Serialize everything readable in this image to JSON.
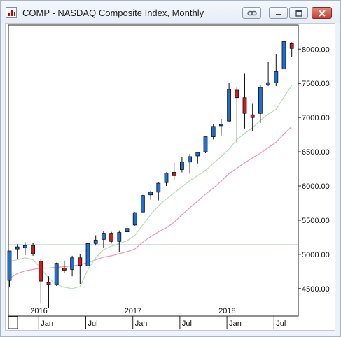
{
  "window": {
    "title": "COMP - NASDAQ Composite Index, Monthly",
    "buttons": {
      "link": "link-icon",
      "minimize": "minimize-icon",
      "maximize": "maximize-icon",
      "close": "close-icon"
    }
  },
  "chart_data": {
    "type": "candlestick",
    "colors": {
      "up": "#1a6fd8",
      "down": "#d11a1a",
      "ma_short": "#b6dcb4",
      "ma_long": "#f291b5",
      "hline": "#4e79c7"
    },
    "ylim": [
      4100,
      8350
    ],
    "yticks": [
      4500,
      5000,
      5500,
      6000,
      6500,
      7000,
      7500,
      8000
    ],
    "ytick_labels": [
      "4500.00",
      "5000.00",
      "5500.00",
      "6000.00",
      "6500.00",
      "7000.00",
      "7500.00",
      "8000.00"
    ],
    "x_year_labels": [
      {
        "label": "2016",
        "index": 4
      },
      {
        "label": "2017",
        "index": 16
      },
      {
        "label": "2018",
        "index": 28
      }
    ],
    "x_month_labels": [
      {
        "label": "Jan",
        "index": 4
      },
      {
        "label": "Jul",
        "index": 10
      },
      {
        "label": "Jan",
        "index": 16
      },
      {
        "label": "Jul",
        "index": 22
      },
      {
        "label": "Jan",
        "index": 28
      },
      {
        "label": "Jul",
        "index": 34
      }
    ],
    "horizontal_line": 5140,
    "candles": [
      {
        "date": "2015-09",
        "o": 4620,
        "h": 5050,
        "l": 4530,
        "c": 5050
      },
      {
        "date": "2015-10",
        "o": 5080,
        "h": 5150,
        "l": 4930,
        "c": 5110
      },
      {
        "date": "2015-11",
        "o": 5100,
        "h": 5180,
        "l": 4990,
        "c": 5130
      },
      {
        "date": "2015-12",
        "o": 5130,
        "h": 5170,
        "l": 4980,
        "c": 5010
      },
      {
        "date": "2016-01",
        "o": 4900,
        "h": 4930,
        "l": 4280,
        "c": 4610
      },
      {
        "date": "2016-02",
        "o": 4590,
        "h": 4680,
        "l": 4220,
        "c": 4560
      },
      {
        "date": "2016-03",
        "o": 4560,
        "h": 4880,
        "l": 4540,
        "c": 4870
      },
      {
        "date": "2016-04",
        "o": 4800,
        "h": 4910,
        "l": 4730,
        "c": 4770
      },
      {
        "date": "2016-05",
        "o": 4780,
        "h": 4980,
        "l": 4680,
        "c": 4950
      },
      {
        "date": "2016-06",
        "o": 4950,
        "h": 5010,
        "l": 4570,
        "c": 4840
      },
      {
        "date": "2016-07",
        "o": 4830,
        "h": 5170,
        "l": 4780,
        "c": 5160
      },
      {
        "date": "2016-08",
        "o": 5160,
        "h": 5280,
        "l": 5130,
        "c": 5210
      },
      {
        "date": "2016-09",
        "o": 5220,
        "h": 5340,
        "l": 5100,
        "c": 5310
      },
      {
        "date": "2016-10",
        "o": 5310,
        "h": 5330,
        "l": 5160,
        "c": 5190
      },
      {
        "date": "2016-11",
        "o": 5190,
        "h": 5350,
        "l": 5030,
        "c": 5320
      },
      {
        "date": "2016-12",
        "o": 5330,
        "h": 5490,
        "l": 5230,
        "c": 5380
      },
      {
        "date": "2017-01",
        "o": 5430,
        "h": 5620,
        "l": 5420,
        "c": 5610
      },
      {
        "date": "2017-02",
        "o": 5620,
        "h": 5870,
        "l": 5620,
        "c": 5860
      },
      {
        "date": "2017-03",
        "o": 5870,
        "h": 5930,
        "l": 5800,
        "c": 5910
      },
      {
        "date": "2017-04",
        "o": 5910,
        "h": 6050,
        "l": 5790,
        "c": 6040
      },
      {
        "date": "2017-05",
        "o": 6050,
        "h": 6200,
        "l": 6000,
        "c": 6190
      },
      {
        "date": "2017-06",
        "o": 6200,
        "h": 6340,
        "l": 6080,
        "c": 6150
      },
      {
        "date": "2017-07",
        "o": 6240,
        "h": 6430,
        "l": 6200,
        "c": 6350
      },
      {
        "date": "2017-08",
        "o": 6350,
        "h": 6470,
        "l": 6180,
        "c": 6430
      },
      {
        "date": "2017-09",
        "o": 6440,
        "h": 6500,
        "l": 6330,
        "c": 6490
      },
      {
        "date": "2017-10",
        "o": 6500,
        "h": 6720,
        "l": 6480,
        "c": 6720
      },
      {
        "date": "2017-11",
        "o": 6720,
        "h": 6900,
        "l": 6680,
        "c": 6870
      },
      {
        "date": "2017-12",
        "o": 6880,
        "h": 6980,
        "l": 6740,
        "c": 6900
      },
      {
        "date": "2018-01",
        "o": 6950,
        "h": 7510,
        "l": 6940,
        "c": 7410
      },
      {
        "date": "2018-02",
        "o": 7400,
        "h": 7440,
        "l": 6630,
        "c": 7290
      },
      {
        "date": "2018-03",
        "o": 7290,
        "h": 7640,
        "l": 6840,
        "c": 7060
      },
      {
        "date": "2018-04",
        "o": 7040,
        "h": 7200,
        "l": 6800,
        "c": 7000
      },
      {
        "date": "2018-05",
        "o": 7060,
        "h": 7470,
        "l": 6920,
        "c": 7440
      },
      {
        "date": "2018-06",
        "o": 7480,
        "h": 7810,
        "l": 7460,
        "c": 7510
      },
      {
        "date": "2018-07",
        "o": 7510,
        "h": 7930,
        "l": 7460,
        "c": 7670
      },
      {
        "date": "2018-08",
        "o": 7710,
        "h": 8130,
        "l": 7650,
        "c": 8110
      },
      {
        "date": "2018-09",
        "o": 8080,
        "h": 8100,
        "l": 7880,
        "c": 8010
      }
    ],
    "ma_short": [
      {
        "i": 0,
        "v": 4900
      },
      {
        "i": 1,
        "v": 4920
      },
      {
        "i": 2,
        "v": 4950
      },
      {
        "i": 3,
        "v": 4920
      },
      {
        "i": 4,
        "v": 4800
      },
      {
        "i": 5,
        "v": 4650
      },
      {
        "i": 6,
        "v": 4560
      },
      {
        "i": 7,
        "v": 4520
      },
      {
        "i": 8,
        "v": 4500
      },
      {
        "i": 9,
        "v": 4530
      },
      {
        "i": 10,
        "v": 4780
      },
      {
        "i": 11,
        "v": 4950
      },
      {
        "i": 12,
        "v": 5070
      },
      {
        "i": 13,
        "v": 5120
      },
      {
        "i": 14,
        "v": 5160
      },
      {
        "i": 15,
        "v": 5200
      },
      {
        "i": 16,
        "v": 5280
      },
      {
        "i": 17,
        "v": 5430
      },
      {
        "i": 18,
        "v": 5580
      },
      {
        "i": 19,
        "v": 5710
      },
      {
        "i": 20,
        "v": 5810
      },
      {
        "i": 21,
        "v": 5900
      },
      {
        "i": 22,
        "v": 5990
      },
      {
        "i": 23,
        "v": 6080
      },
      {
        "i": 24,
        "v": 6150
      },
      {
        "i": 25,
        "v": 6230
      },
      {
        "i": 26,
        "v": 6330
      },
      {
        "i": 27,
        "v": 6430
      },
      {
        "i": 28,
        "v": 6540
      },
      {
        "i": 29,
        "v": 6680
      },
      {
        "i": 30,
        "v": 6770
      },
      {
        "i": 31,
        "v": 6850
      },
      {
        "i": 32,
        "v": 6960
      },
      {
        "i": 33,
        "v": 7050
      },
      {
        "i": 34,
        "v": 7120
      },
      {
        "i": 35,
        "v": 7300
      },
      {
        "i": 36,
        "v": 7470
      }
    ],
    "ma_long": [
      {
        "i": 0,
        "v": 4650
      },
      {
        "i": 1,
        "v": 4720
      },
      {
        "i": 2,
        "v": 4760
      },
      {
        "i": 3,
        "v": 4780
      },
      {
        "i": 4,
        "v": 4800
      },
      {
        "i": 5,
        "v": 4800
      },
      {
        "i": 6,
        "v": 4810
      },
      {
        "i": 7,
        "v": 4820
      },
      {
        "i": 8,
        "v": 4830
      },
      {
        "i": 9,
        "v": 4850
      },
      {
        "i": 10,
        "v": 4880
      },
      {
        "i": 11,
        "v": 4920
      },
      {
        "i": 12,
        "v": 4960
      },
      {
        "i": 13,
        "v": 4980
      },
      {
        "i": 14,
        "v": 5010
      },
      {
        "i": 15,
        "v": 5040
      },
      {
        "i": 16,
        "v": 5080
      },
      {
        "i": 17,
        "v": 5180
      },
      {
        "i": 18,
        "v": 5260
      },
      {
        "i": 19,
        "v": 5330
      },
      {
        "i": 20,
        "v": 5390
      },
      {
        "i": 21,
        "v": 5470
      },
      {
        "i": 22,
        "v": 5580
      },
      {
        "i": 23,
        "v": 5680
      },
      {
        "i": 24,
        "v": 5780
      },
      {
        "i": 25,
        "v": 5880
      },
      {
        "i": 26,
        "v": 5970
      },
      {
        "i": 27,
        "v": 6070
      },
      {
        "i": 28,
        "v": 6180
      },
      {
        "i": 29,
        "v": 6260
      },
      {
        "i": 30,
        "v": 6340
      },
      {
        "i": 31,
        "v": 6410
      },
      {
        "i": 32,
        "v": 6480
      },
      {
        "i": 33,
        "v": 6560
      },
      {
        "i": 34,
        "v": 6640
      },
      {
        "i": 35,
        "v": 6760
      },
      {
        "i": 36,
        "v": 6870
      }
    ]
  }
}
